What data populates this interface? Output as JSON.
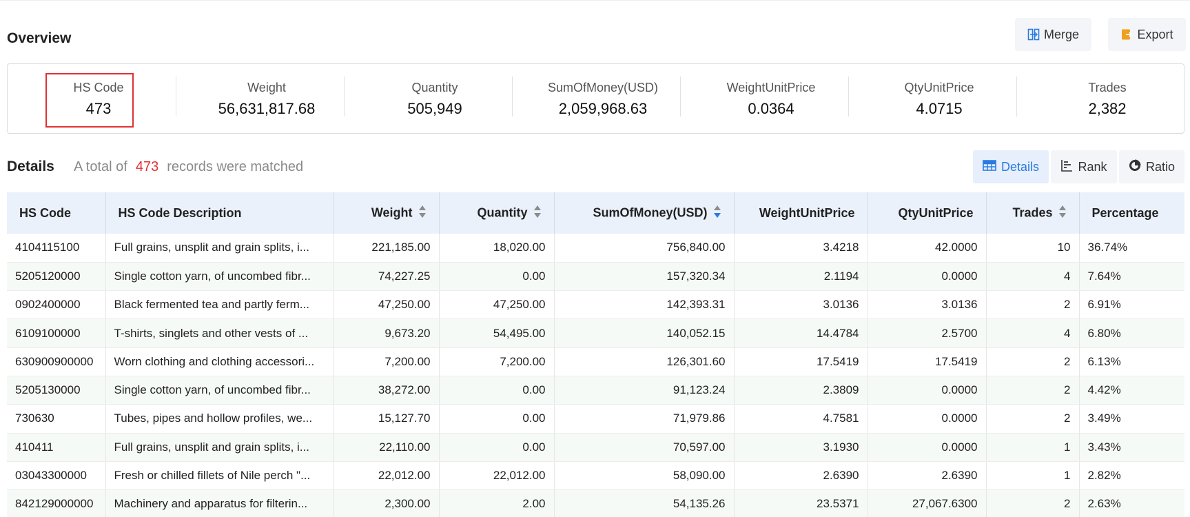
{
  "overview": {
    "title": "Overview",
    "merge_label": "Merge",
    "export_label": "Export",
    "stats": [
      {
        "label": "HS Code",
        "value": "473"
      },
      {
        "label": "Weight",
        "value": "56,631,817.68"
      },
      {
        "label": "Quantity",
        "value": "505,949"
      },
      {
        "label": "SumOfMoney(USD)",
        "value": "2,059,968.63"
      },
      {
        "label": "WeightUnitPrice",
        "value": "0.0364"
      },
      {
        "label": "QtyUnitPrice",
        "value": "4.0715"
      },
      {
        "label": "Trades",
        "value": "2,382"
      }
    ]
  },
  "details": {
    "title": "Details",
    "matched_prefix": "A total of",
    "matched_count": "473",
    "matched_suffix": "records were matched",
    "views": {
      "details": "Details",
      "rank": "Rank",
      "ratio": "Ratio"
    },
    "active_view": "details"
  },
  "table": {
    "columns": [
      "HS Code",
      "HS Code Description",
      "Weight",
      "Quantity",
      "SumOfMoney(USD)",
      "WeightUnitPrice",
      "QtyUnitPrice",
      "Trades",
      "Percentage"
    ],
    "rows": [
      [
        "4104115100",
        "Full grains, unsplit and grain splits, i...",
        "221,185.00",
        "18,020.00",
        "756,840.00",
        "3.4218",
        "42.0000",
        "10",
        "36.74%"
      ],
      [
        "5205120000",
        "Single cotton yarn, of uncombed fibr...",
        "74,227.25",
        "0.00",
        "157,320.34",
        "2.1194",
        "0.0000",
        "4",
        "7.64%"
      ],
      [
        "0902400000",
        "Black fermented tea and partly ferm...",
        "47,250.00",
        "47,250.00",
        "142,393.31",
        "3.0136",
        "3.0136",
        "2",
        "6.91%"
      ],
      [
        "6109100000",
        "T-shirts, singlets and other vests of ...",
        "9,673.20",
        "54,495.00",
        "140,052.15",
        "14.4784",
        "2.5700",
        "4",
        "6.80%"
      ],
      [
        "630900900000",
        "Worn clothing and clothing accessori...",
        "7,200.00",
        "7,200.00",
        "126,301.60",
        "17.5419",
        "17.5419",
        "2",
        "6.13%"
      ],
      [
        "5205130000",
        "Single cotton yarn, of uncombed fibr...",
        "38,272.00",
        "0.00",
        "91,123.24",
        "2.3809",
        "0.0000",
        "2",
        "4.42%"
      ],
      [
        "730630",
        "Tubes, pipes and hollow profiles, we...",
        "15,127.70",
        "0.00",
        "71,979.86",
        "4.7581",
        "0.0000",
        "2",
        "3.49%"
      ],
      [
        "410411",
        "Full grains, unsplit and grain splits, i...",
        "22,110.00",
        "0.00",
        "70,597.00",
        "3.1930",
        "0.0000",
        "1",
        "3.43%"
      ],
      [
        "03043300000",
        "Fresh or chilled fillets of Nile perch \"...",
        "22,012.00",
        "22,012.00",
        "58,090.00",
        "2.6390",
        "2.6390",
        "1",
        "2.82%"
      ],
      [
        "842129000000",
        "Machinery and apparatus for filterin...",
        "2,300.00",
        "2.00",
        "54,135.26",
        "23.5371",
        "27,067.6300",
        "2",
        "2.63%"
      ]
    ]
  },
  "colors": {
    "accent": "#2a7ae2",
    "highlight": "#e03131",
    "header_bg": "#eaf1fb",
    "export_icon": "#f0a020"
  }
}
